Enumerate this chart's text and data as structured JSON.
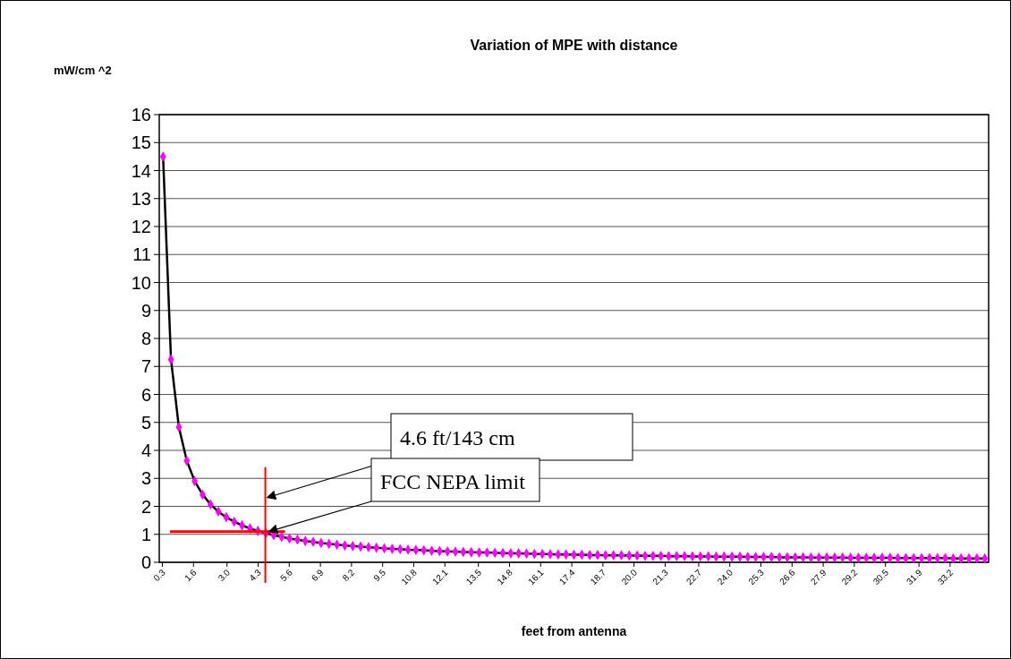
{
  "chart_data": {
    "type": "line",
    "title": "Variation of MPE with distance",
    "xlabel": "feet from antenna",
    "ylabel": "mW/cm ^2",
    "x": [
      0.33,
      0.66,
      0.99,
      1.32,
      1.65,
      1.98,
      2.31,
      2.64,
      2.97,
      3.3,
      3.63,
      3.96,
      4.29,
      4.62,
      4.95,
      5.28,
      5.61,
      5.94,
      6.27,
      6.6,
      6.93,
      7.26,
      7.59,
      7.92,
      8.25,
      8.58,
      8.91,
      9.24,
      9.57,
      9.9,
      10.23,
      10.56,
      10.89,
      11.22,
      11.55,
      11.88,
      12.21,
      12.54,
      12.87,
      13.2,
      13.53,
      13.86,
      14.19,
      14.52,
      14.85,
      15.18,
      15.51,
      15.84,
      16.17,
      16.5,
      16.83,
      17.16,
      17.49,
      17.82,
      18.15,
      18.48,
      18.81,
      19.14,
      19.47,
      19.8,
      20.13,
      20.46,
      20.79,
      21.12,
      21.45,
      21.78,
      22.11,
      22.44,
      22.77,
      23.1,
      23.43,
      23.76,
      24.09,
      24.42,
      24.75,
      25.08,
      25.41,
      25.74,
      26.07,
      26.4,
      26.73,
      27.06,
      27.39,
      27.72,
      28.05,
      28.38,
      28.71,
      29.04,
      29.37,
      29.7,
      30.03,
      30.36,
      30.69,
      31.02,
      31.35,
      31.68,
      32.01,
      32.34,
      32.67,
      33.0,
      33.33,
      33.66,
      33.99,
      34.32,
      34.65
    ],
    "series": [
      {
        "color": "#ff00ff",
        "values": [
          14.5,
          7.25,
          4.83,
          3.63,
          2.9,
          2.42,
          2.07,
          1.81,
          1.61,
          1.45,
          1.32,
          1.21,
          1.12,
          1.04,
          0.97,
          0.91,
          0.85,
          0.81,
          0.76,
          0.73,
          0.69,
          0.66,
          0.63,
          0.6,
          0.58,
          0.56,
          0.54,
          0.52,
          0.5,
          0.48,
          0.47,
          0.45,
          0.44,
          0.43,
          0.41,
          0.4,
          0.39,
          0.38,
          0.37,
          0.36,
          0.35,
          0.35,
          0.34,
          0.33,
          0.32,
          0.32,
          0.31,
          0.3,
          0.3,
          0.29,
          0.28,
          0.28,
          0.27,
          0.27,
          0.26,
          0.26,
          0.25,
          0.25,
          0.25,
          0.24,
          0.24,
          0.23,
          0.23,
          0.23,
          0.22,
          0.22,
          0.22,
          0.21,
          0.21,
          0.21,
          0.2,
          0.2,
          0.2,
          0.2,
          0.19,
          0.19,
          0.19,
          0.19,
          0.18,
          0.18,
          0.18,
          0.18,
          0.17,
          0.17,
          0.17,
          0.17,
          0.17,
          0.16,
          0.16,
          0.16,
          0.16,
          0.16,
          0.16,
          0.15,
          0.15,
          0.15,
          0.15,
          0.15,
          0.15,
          0.15,
          0.14,
          0.14,
          0.14,
          0.14,
          0.14
        ]
      }
    ],
    "xlim": [
      0.17,
      34.81
    ],
    "xticks": [
      0.3,
      1.6,
      {
        "value": 3,
        "label": "3.0"
      },
      4.3,
      5.6,
      6.9,
      8.2,
      9.5,
      10.8,
      12.1,
      13.5,
      14.8,
      16.1,
      17.4,
      18.7,
      {
        "value": 20,
        "label": "20.0"
      },
      21.3,
      22.7,
      {
        "value": 24,
        "label": "24.0"
      },
      25.3,
      26.6,
      27.9,
      29.2,
      30.5,
      31.9,
      33.2
    ],
    "ylim": [
      0,
      16
    ],
    "yticks": [
      0,
      1,
      2,
      3,
      4,
      5,
      6,
      7,
      8,
      9,
      10,
      11,
      12,
      13,
      14,
      15,
      16
    ],
    "grid": "y",
    "marker": "diamond",
    "line_style": "solid",
    "ref_lines": [
      {
        "axis": "x",
        "value": 4.6,
        "label": "4.6 ft/143 cm",
        "color": "#ff0000"
      },
      {
        "axis": "y",
        "value": 1.1,
        "label": "FCC NEPA limit",
        "color": "#ff0000"
      }
    ]
  }
}
